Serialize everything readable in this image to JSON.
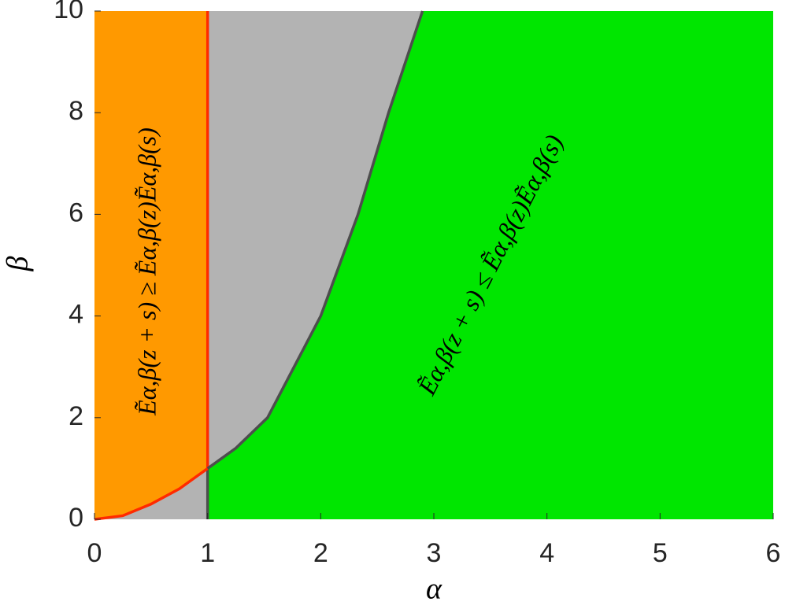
{
  "chart_data": {
    "type": "region",
    "xlabel": "α",
    "ylabel": "β",
    "xlim": [
      0,
      6
    ],
    "ylim": [
      0,
      10
    ],
    "xticks": [
      0,
      1,
      2,
      3,
      4,
      5,
      6
    ],
    "yticks": [
      0,
      2,
      4,
      6,
      8,
      10
    ],
    "background_color": "#b3b3b3",
    "curves": [
      {
        "color": "#ff2a00",
        "fill": "#ff9900",
        "x": [
          0,
          0.25,
          0.5,
          0.75,
          1
        ],
        "values": [
          0,
          0.07,
          0.3,
          0.6,
          1
        ]
      },
      {
        "color": "#4d4d4d",
        "fill": "#00e600",
        "x": [
          1,
          1.25,
          1.53,
          2,
          2.33,
          2.6,
          2.9
        ],
        "values": [
          1,
          1.4,
          2,
          4,
          6,
          8,
          10
        ]
      }
    ],
    "annotations": [
      {
        "text": "Ẽα,β(z + s) ≥ Ẽα,β(z)Ẽα,β(s)"
      },
      {
        "text": "Ẽα,β(z + s) ≤ Ẽα,β(z)Ẽα,β(s)"
      }
    ]
  }
}
